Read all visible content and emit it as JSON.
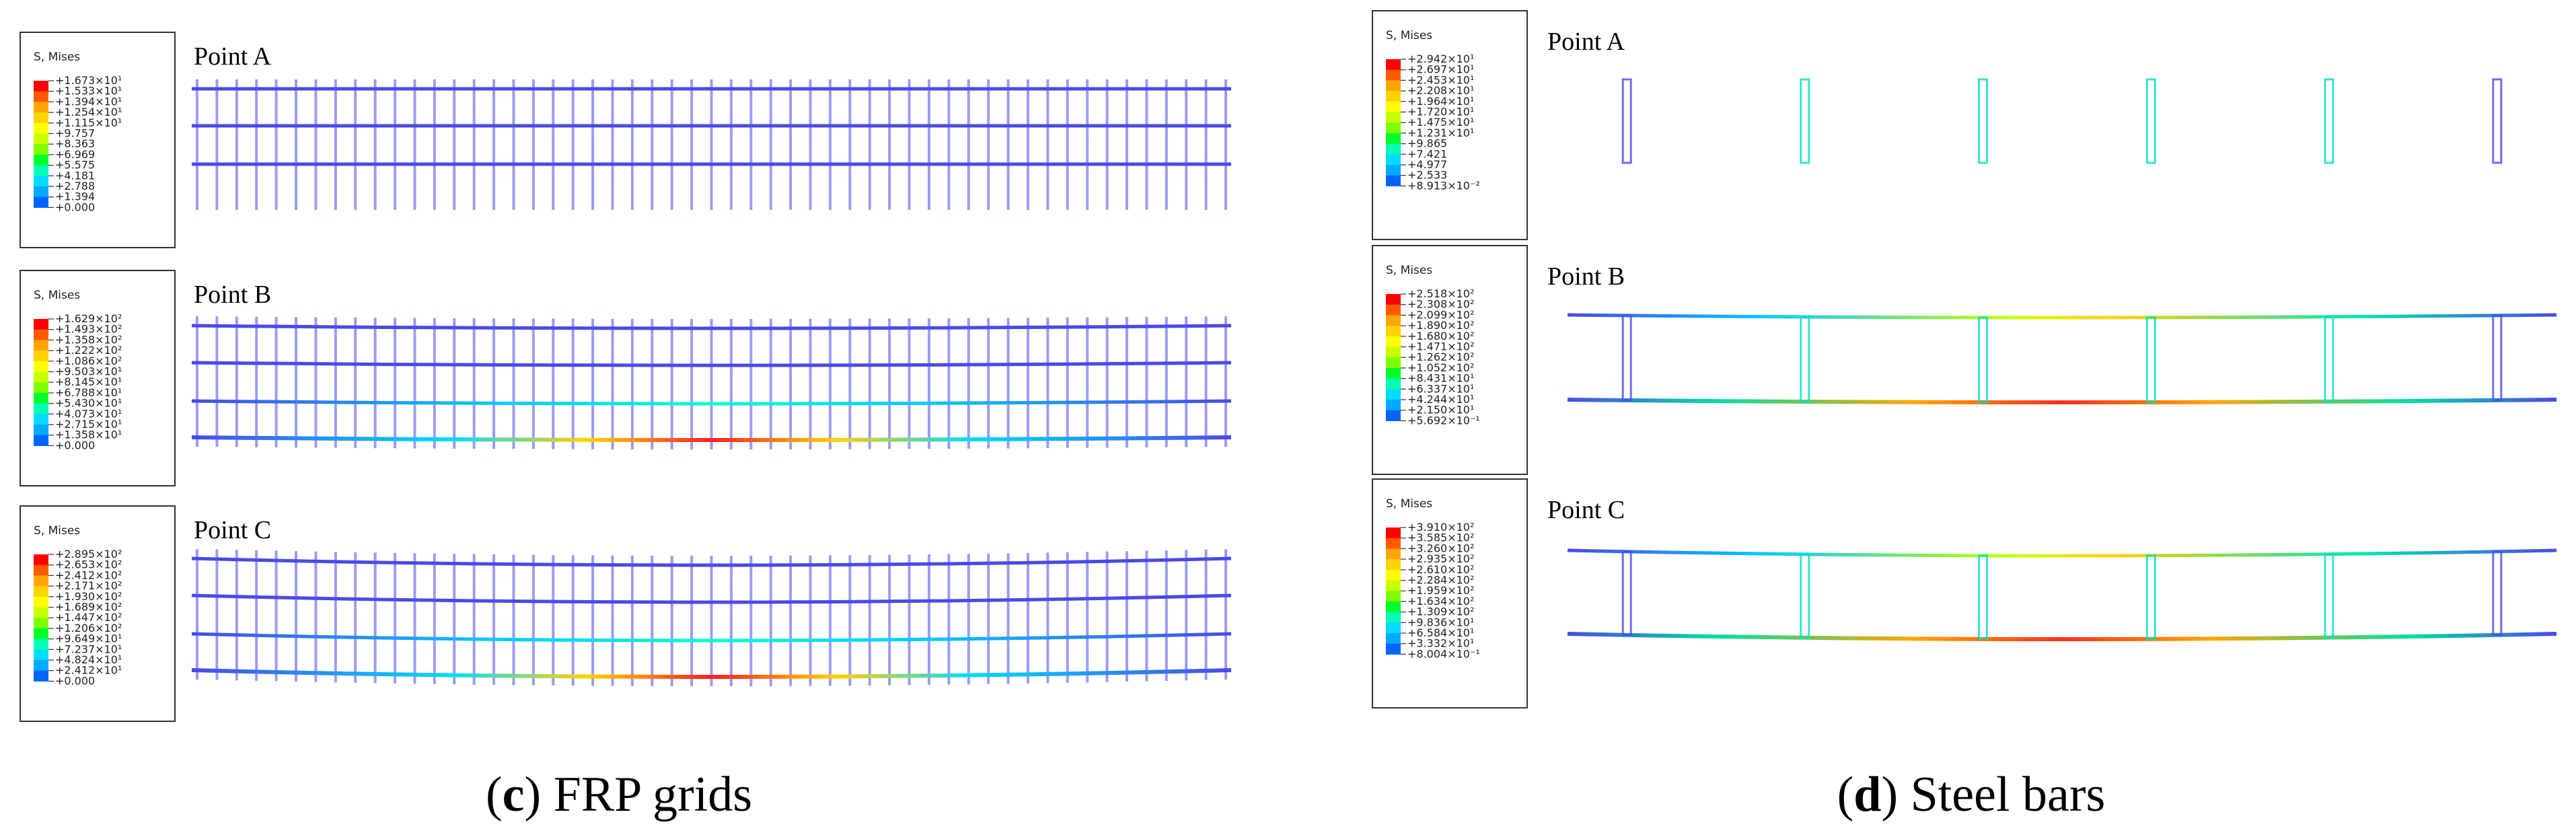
{
  "colors": {
    "scale": [
      "#ff0000",
      "#ff5a00",
      "#ffa500",
      "#ffd200",
      "#ffff00",
      "#c8ff00",
      "#7dff00",
      "#00ff28",
      "#00ffb4",
      "#00dcff",
      "#00aaff",
      "#0064ff",
      "#0000ff"
    ],
    "bar": "#4a4ae8",
    "legend_frame": "#333333"
  },
  "left_panel": {
    "caption_letter": "c",
    "caption_text": "FRP grids",
    "results": [
      {
        "point_label": "Point A",
        "legend_title": "S, Mises",
        "legend_values": [
          "+1.673×10¹",
          "+1.533×10¹",
          "+1.394×10¹",
          "+1.254×10¹",
          "+1.115×10¹",
          "+9.757",
          "+8.363",
          "+6.969",
          "+5.575",
          "+4.181",
          "+2.788",
          "+1.394",
          "+0.000"
        ]
      },
      {
        "point_label": "Point B",
        "legend_title": "S, Mises",
        "legend_values": [
          "+1.629×10²",
          "+1.493×10²",
          "+1.358×10²",
          "+1.222×10²",
          "+1.086×10²",
          "+9.503×10¹",
          "+8.145×10¹",
          "+6.788×10¹",
          "+5.430×10¹",
          "+4.073×10¹",
          "+2.715×10¹",
          "+1.358×10¹",
          "+0.000"
        ]
      },
      {
        "point_label": "Point C",
        "legend_title": "S, Mises",
        "legend_values": [
          "+2.895×10²",
          "+2.653×10²",
          "+2.412×10²",
          "+2.171×10²",
          "+1.930×10²",
          "+1.689×10²",
          "+1.447×10²",
          "+1.206×10²",
          "+9.649×10¹",
          "+7.237×10¹",
          "+4.824×10¹",
          "+2.412×10¹",
          "+0.000"
        ]
      }
    ]
  },
  "right_panel": {
    "caption_letter": "d",
    "caption_text": "Steel bars",
    "results": [
      {
        "point_label": "Point A",
        "legend_title": "S, Mises",
        "legend_values": [
          "+2.942×10¹",
          "+2.697×10¹",
          "+2.453×10¹",
          "+2.208×10¹",
          "+1.964×10¹",
          "+1.720×10¹",
          "+1.475×10¹",
          "+1.231×10¹",
          "+9.865",
          "+7.421",
          "+4.977",
          "+2.533",
          "+8.913×10⁻²"
        ]
      },
      {
        "point_label": "Point B",
        "legend_title": "S, Mises",
        "legend_values": [
          "+2.518×10²",
          "+2.308×10²",
          "+2.099×10²",
          "+1.890×10²",
          "+1.680×10²",
          "+1.471×10²",
          "+1.262×10²",
          "+1.052×10²",
          "+8.431×10¹",
          "+6.337×10¹",
          "+4.244×10¹",
          "+2.150×10¹",
          "+5.692×10⁻¹"
        ]
      },
      {
        "point_label": "Point C",
        "legend_title": "S, Mises",
        "legend_values": [
          "+3.910×10²",
          "+3.585×10²",
          "+3.260×10²",
          "+2.935×10²",
          "+2.610×10²",
          "+2.284×10²",
          "+1.959×10²",
          "+1.634×10²",
          "+1.309×10²",
          "+9.836×10¹",
          "+6.584×10¹",
          "+3.332×10¹",
          "+8.004×10⁻¹"
        ]
      }
    ]
  }
}
